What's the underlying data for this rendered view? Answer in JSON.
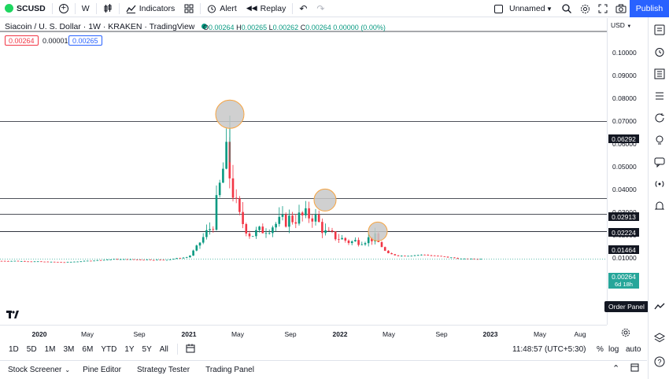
{
  "toolbar": {
    "symbol": "SCUSD",
    "interval": "W",
    "indicators": "Indicators",
    "alert": "Alert",
    "replay": "Replay",
    "layout_name": "Unnamed",
    "publish": "Publish"
  },
  "legend": {
    "title": "Siacoin / U. S. Dollar · 1W · KRAKEN · TradingView",
    "o_label": "O",
    "o": "0.00264",
    "h_label": "H",
    "h": "0.00265",
    "l_label": "L",
    "l": "0.00262",
    "c_label": "C",
    "c": "0.00264",
    "change": "0.00000 (0.00%)",
    "sell_price": "0.00264",
    "spread": "0.00001",
    "buy_price": "0.00265"
  },
  "price_scale": {
    "currency": "USD",
    "ticks": [
      "0.10000",
      "0.09000",
      "0.08000",
      "0.07000",
      "0.06000",
      "0.05000",
      "0.04000",
      "0.03000",
      "0.02000",
      "0.01000"
    ],
    "hline_labels": [
      "0.06292",
      "0.02913",
      "0.02224",
      "0.01464"
    ],
    "last_price": "0.00264",
    "countdown": "6d 18h"
  },
  "time_scale": {
    "ticks": [
      "2020",
      "May",
      "Sep",
      "2021",
      "May",
      "Sep",
      "2022",
      "May",
      "Sep",
      "2023",
      "May",
      "Aug"
    ]
  },
  "bottom_bar": {
    "ranges": [
      "1D",
      "5D",
      "1M",
      "3M",
      "6M",
      "YTD",
      "1Y",
      "5Y",
      "All"
    ],
    "clock": "11:48:57 (UTC+5:30)",
    "percent": "%",
    "log": "log",
    "auto": "auto"
  },
  "footer": {
    "tabs": [
      "Stock Screener",
      "Pine Editor",
      "Strategy Tester",
      "Trading Panel"
    ]
  },
  "tooltip": "Order Panel",
  "colors": {
    "up": "#089981",
    "down": "#f23645",
    "accent": "#2962ff",
    "circle_fill": "#c8c8c8",
    "circle_stroke": "#f7a440"
  },
  "chart_data": {
    "type": "candlestick",
    "title": "Siacoin / U. S. Dollar · 1W · KRAKEN · TradingView",
    "horizontal_lines": [
      0.06292,
      0.02913,
      0.02224,
      0.01464
    ],
    "highlighted_peaks": [
      {
        "date": "2021-04",
        "price": 0.0655
      },
      {
        "date": "2021-11",
        "price": 0.028
      },
      {
        "date": "2022-04",
        "price": 0.0143
      }
    ],
    "series": [
      {
        "date": "2019-11",
        "close": 0.0018
      },
      {
        "date": "2020-03",
        "close": 0.0012
      },
      {
        "date": "2020-07",
        "close": 0.0025
      },
      {
        "date": "2020-11",
        "close": 0.0022
      },
      {
        "date": "2021-01",
        "close": 0.0035
      },
      {
        "date": "2021-02",
        "close": 0.011
      },
      {
        "date": "2021-03",
        "close": 0.018
      },
      {
        "date": "2021-04",
        "close": 0.048
      },
      {
        "date": "2021-05",
        "close": 0.022
      },
      {
        "date": "2021-06",
        "close": 0.013
      },
      {
        "date": "2021-08",
        "close": 0.018
      },
      {
        "date": "2021-09",
        "close": 0.02
      },
      {
        "date": "2021-11",
        "close": 0.022
      },
      {
        "date": "2021-12",
        "close": 0.014
      },
      {
        "date": "2022-02",
        "close": 0.01
      },
      {
        "date": "2022-04",
        "close": 0.012
      },
      {
        "date": "2022-05",
        "close": 0.005
      },
      {
        "date": "2022-06",
        "close": 0.004
      },
      {
        "date": "2022-08",
        "close": 0.0045
      },
      {
        "date": "2022-10",
        "close": 0.0033
      },
      {
        "date": "2022-11",
        "close": 0.00264
      }
    ]
  }
}
